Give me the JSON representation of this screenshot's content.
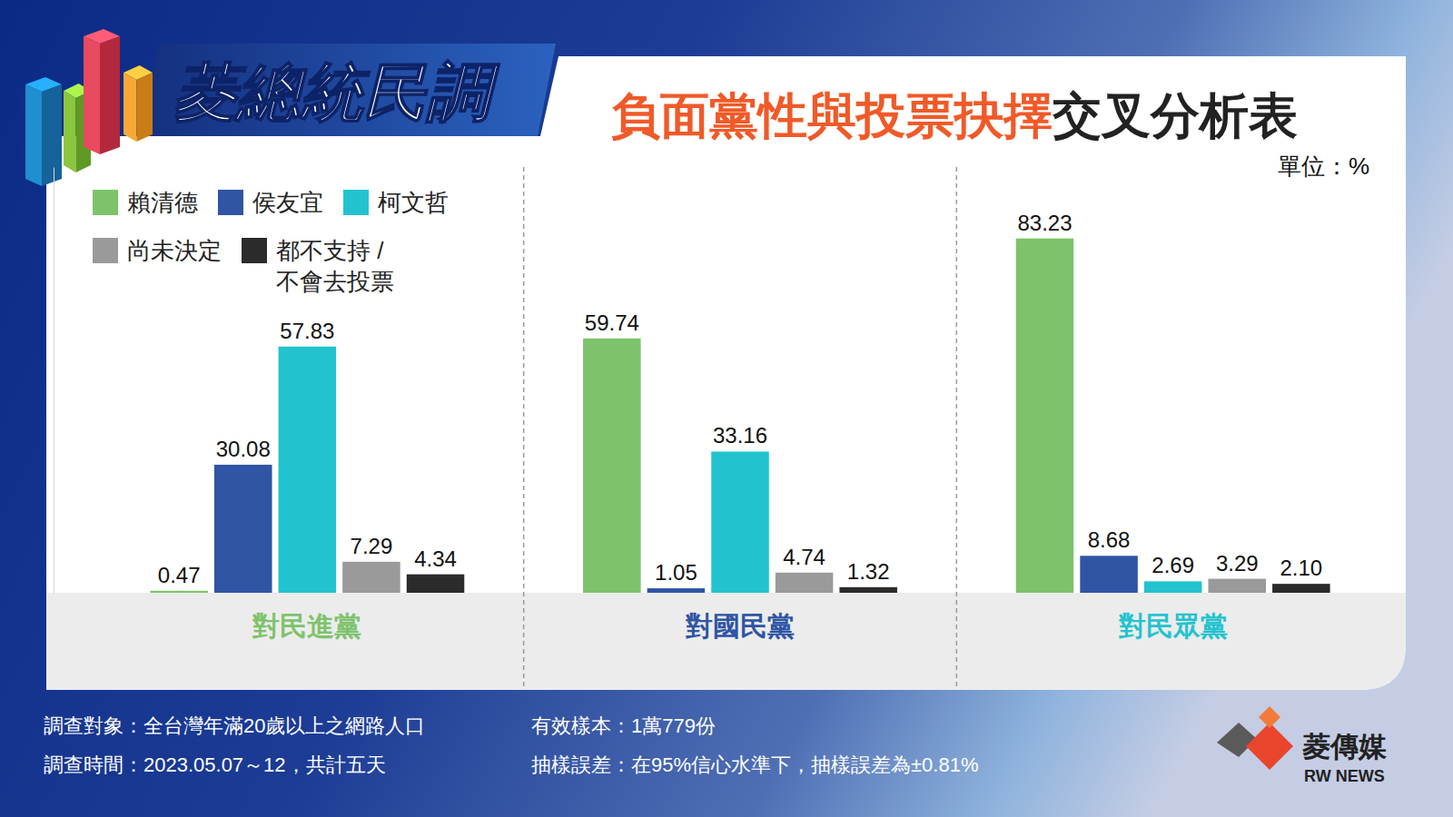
{
  "brand": "菱總統民調",
  "chart_data": {
    "type": "bar",
    "title": [
      "負面黨性與投票抉擇",
      "交叉分析表"
    ],
    "unit_label": "單位：%",
    "categories": [
      "對民進黨",
      "對國民黨",
      "對民眾黨"
    ],
    "series": [
      {
        "name": "賴清德",
        "color": "#7dc36b",
        "values": [
          0.47,
          59.74,
          83.23
        ],
        "value_labels": [
          "0.47",
          "59.74",
          "83.23"
        ]
      },
      {
        "name": "侯友宜",
        "color": "#2f55a4",
        "values": [
          30.08,
          1.05,
          8.68
        ],
        "value_labels": [
          "30.08",
          "1.05",
          "8.68"
        ]
      },
      {
        "name": "柯文哲",
        "color": "#22c3cf",
        "values": [
          57.83,
          33.16,
          2.69
        ],
        "value_labels": [
          "57.83",
          "33.16",
          "2.69"
        ]
      },
      {
        "name": "尚未決定",
        "color": "#9a9a9a",
        "values": [
          7.29,
          4.74,
          3.29
        ],
        "value_labels": [
          "7.29",
          "4.74",
          "3.29"
        ]
      },
      {
        "name": "都不支持 / 不會去投票",
        "color": "#2b2b2b",
        "values": [
          4.34,
          1.32,
          2.1
        ],
        "value_labels": [
          "4.34",
          "1.32",
          "2.10"
        ]
      }
    ],
    "ylim": [
      0,
      100
    ],
    "tick_labels": false,
    "grid": false,
    "legend": "top-left",
    "data_labels": true
  },
  "footer": {
    "left": [
      "調查對象：全台灣年滿20歲以上之網路人口",
      "調查時間：2023.05.07～12，共計五天"
    ],
    "right": [
      "有效樣本：1萬779份",
      "抽樣誤差：在95%信心水準下，抽樣誤差為±0.81%"
    ]
  },
  "logo": {
    "name": "菱傳媒",
    "sub": "RW NEWS"
  }
}
